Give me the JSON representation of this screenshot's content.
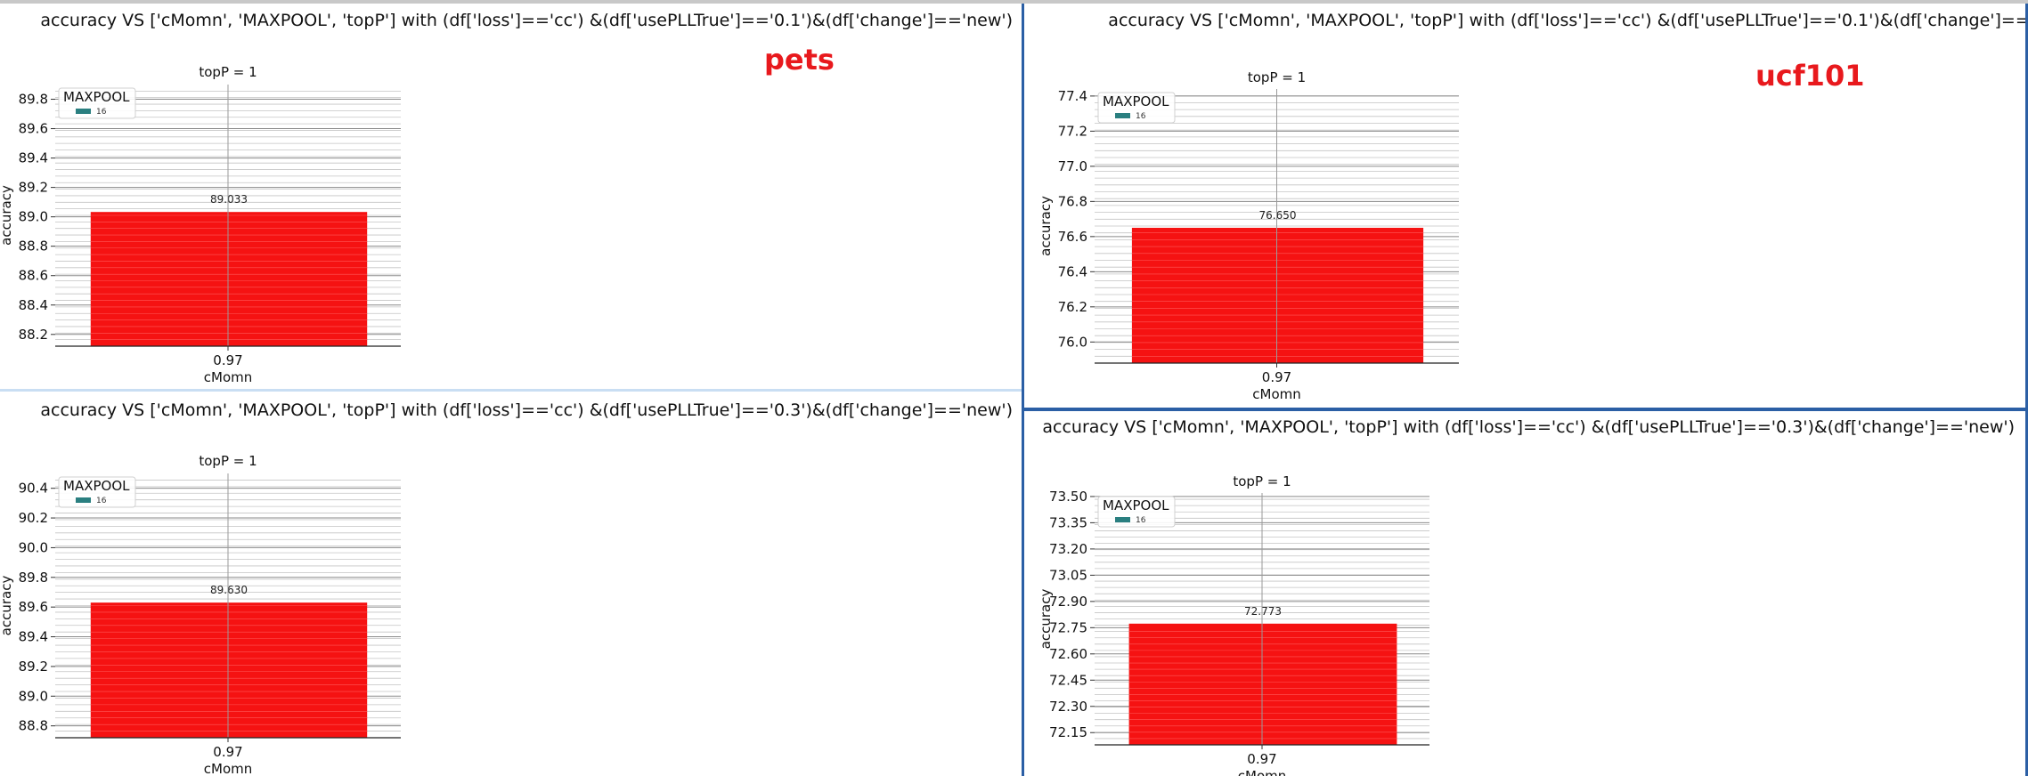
{
  "colors": {
    "bar": "#f51212",
    "legend_swatch": "#2a7f80",
    "dataset_tag": "#e8191d"
  },
  "panels": [
    {
      "dataset_tag": "pets"
    },
    {
      "dataset_tag": "ucf101"
    },
    {
      "dataset_tag": ""
    },
    {
      "dataset_tag": ""
    }
  ],
  "chart_data": [
    {
      "type": "bar",
      "suptitle": "accuracy VS ['cMomn', 'MAXPOOL', 'topP'] with (df['loss']=='cc') &(df['usePLLTrue']=='0.1')&(df['change']=='new')",
      "title": "topP = 1",
      "xlabel": "cMomn",
      "ylabel": "accuracy",
      "categories": [
        "0.97"
      ],
      "series": [
        {
          "name": "16",
          "values": [
            89.033
          ]
        }
      ],
      "data_labels": [
        "89.033"
      ],
      "legend": {
        "title": "MAXPOOL",
        "entries": [
          "16"
        ],
        "position": "upper-left"
      },
      "yticks": [
        "88.2",
        "88.4",
        "88.6",
        "88.8",
        "89.0",
        "89.2",
        "89.4",
        "89.6",
        "89.8"
      ],
      "ylim": [
        88.12,
        89.9
      ],
      "grid": true
    },
    {
      "type": "bar",
      "suptitle": "accuracy VS ['cMomn', 'MAXPOOL', 'topP'] with (df['loss']=='cc') &(df['usePLLTrue']=='0.1')&(df['change']=='",
      "title": "topP = 1",
      "xlabel": "cMomn",
      "ylabel": "accuracy",
      "categories": [
        "0.97"
      ],
      "series": [
        {
          "name": "16",
          "values": [
            76.65
          ]
        }
      ],
      "data_labels": [
        "76.650"
      ],
      "legend": {
        "title": "MAXPOOL",
        "entries": [
          "16"
        ],
        "position": "upper-left"
      },
      "yticks": [
        "76.0",
        "76.2",
        "76.4",
        "76.6",
        "76.8",
        "77.0",
        "77.2",
        "77.4"
      ],
      "ylim": [
        75.88,
        77.44
      ],
      "grid": true
    },
    {
      "type": "bar",
      "suptitle": "accuracy VS ['cMomn', 'MAXPOOL', 'topP'] with (df['loss']=='cc') &(df['usePLLTrue']=='0.3')&(df['change']=='new')",
      "title": "topP = 1",
      "xlabel": "cMomn",
      "ylabel": "accuracy",
      "categories": [
        "0.97"
      ],
      "series": [
        {
          "name": "16",
          "values": [
            89.63
          ]
        }
      ],
      "data_labels": [
        "89.630"
      ],
      "legend": {
        "title": "MAXPOOL",
        "entries": [
          "16"
        ],
        "position": "upper-left"
      },
      "yticks": [
        "88.8",
        "89.0",
        "89.2",
        "89.4",
        "89.6",
        "89.8",
        "90.0",
        "90.2",
        "90.4"
      ],
      "ylim": [
        88.72,
        90.5
      ],
      "grid": true
    },
    {
      "type": "bar",
      "suptitle": "accuracy VS ['cMomn', 'MAXPOOL', 'topP'] with (df['loss']=='cc') &(df['usePLLTrue']=='0.3')&(df['change']=='new')",
      "title": "topP = 1",
      "xlabel": "cMomn",
      "ylabel": "accuracy",
      "categories": [
        "0.97"
      ],
      "series": [
        {
          "name": "16",
          "values": [
            72.773
          ]
        }
      ],
      "data_labels": [
        "72.773"
      ],
      "legend": {
        "title": "MAXPOOL",
        "entries": [
          "16"
        ],
        "position": "upper-left"
      },
      "yticks": [
        "72.15",
        "72.30",
        "72.45",
        "72.60",
        "72.75",
        "72.90",
        "73.05",
        "73.20",
        "73.35",
        "73.50"
      ],
      "ylim": [
        72.08,
        73.52
      ],
      "grid": true
    }
  ]
}
